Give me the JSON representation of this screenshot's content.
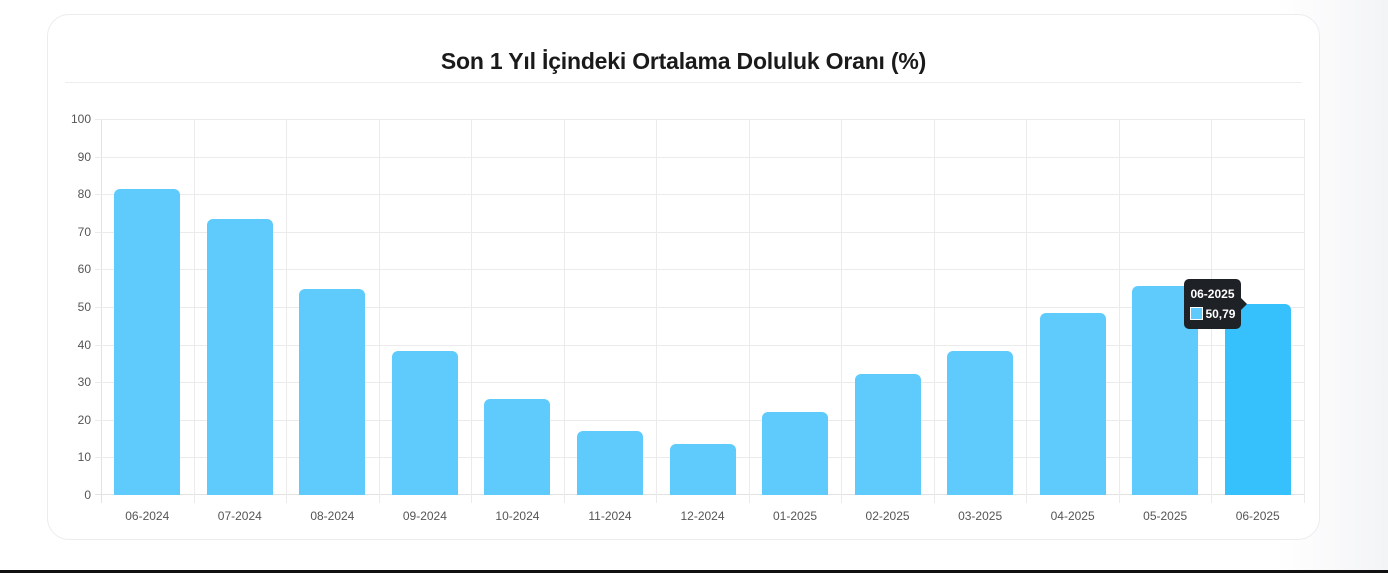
{
  "chart_data": {
    "type": "bar",
    "title": "Son 1 Yıl İçindeki Ortalama Doluluk Oranı (%)",
    "xlabel": "",
    "ylabel": "",
    "ylim": [
      0,
      100
    ],
    "yticks": [
      "0",
      "10",
      "20",
      "30",
      "40",
      "50",
      "60",
      "70",
      "80",
      "90",
      "100"
    ],
    "grid": true,
    "legend": null,
    "categories": [
      "06-2024",
      "07-2024",
      "08-2024",
      "09-2024",
      "10-2024",
      "11-2024",
      "12-2024",
      "01-2025",
      "02-2025",
      "03-2025",
      "04-2025",
      "05-2025",
      "06-2025"
    ],
    "values": [
      81.4,
      73.4,
      54.8,
      38.3,
      25.5,
      17.0,
      13.6,
      22.1,
      32.2,
      38.3,
      48.4,
      55.6,
      50.79
    ],
    "bar_color": "#5ecbfc",
    "active_bar_color": "#36c1fd"
  },
  "tooltip": {
    "label": "06-2025",
    "value": "50,79",
    "active_index": 12
  }
}
